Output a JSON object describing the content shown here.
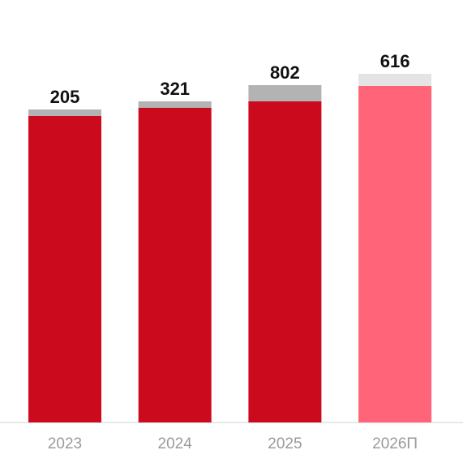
{
  "chart_data": {
    "type": "bar",
    "stacked": true,
    "categories": [
      "2023",
      "2024",
      "2025",
      "2026П"
    ],
    "series": [
      {
        "values": [
          205,
          321,
          802,
          616
        ]
      }
    ],
    "totals": [
      "205",
      "321",
      "802",
      "616"
    ],
    "colors": {
      "main": [
        "#cc0a1e",
        "#cc0a1e",
        "#cc0a1e",
        "#ff6479"
      ],
      "cap": [
        "#b3b3b3",
        "#b3b3b3",
        "#b3b3b3",
        "#e4e4e4"
      ],
      "axis": "#d0d0d0"
    },
    "title": "",
    "xlabel": "",
    "ylabel": "",
    "grid": false,
    "legend": "none"
  }
}
